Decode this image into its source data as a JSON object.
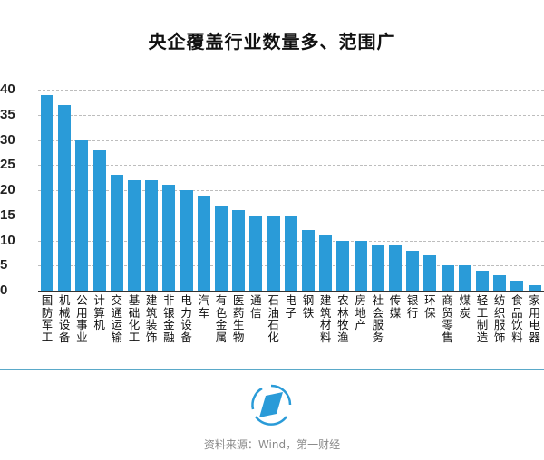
{
  "title": "央企覆盖行业数量多、范围广",
  "source": "资料来源：Wind，第一财经",
  "colors": {
    "bar": "#2a9bd8",
    "divider": "#5aa9c9",
    "logo": "#2a9bd8"
  },
  "logo_icon": "compass-diamond-icon",
  "chart_data": {
    "type": "bar",
    "title": "央企覆盖行业数量多、范围广",
    "xlabel": "",
    "ylabel": "",
    "ylim": [
      0,
      40
    ],
    "yticks": [
      0,
      5,
      10,
      15,
      20,
      25,
      30,
      35,
      40
    ],
    "grid": true,
    "legend": null,
    "categories": [
      "国防军工",
      "机械设备",
      "公用事业",
      "计算机",
      "交通运输",
      "基础化工",
      "建筑装饰",
      "非银金融",
      "电力设备",
      "汽车",
      "有色金属",
      "医药生物",
      "通信",
      "石油石化",
      "电子",
      "钢铁",
      "建筑材料",
      "农林牧渔",
      "房地产",
      "社会服务",
      "传媒",
      "银行",
      "环保",
      "商贸零售",
      "煤炭",
      "轻工制造",
      "纺织服饰",
      "食品饮料",
      "家用电器"
    ],
    "values": [
      39,
      37,
      30,
      28,
      23,
      22,
      22,
      21,
      20,
      19,
      17,
      16,
      15,
      15,
      15,
      12,
      11,
      10,
      10,
      9,
      9,
      8,
      7,
      5,
      5,
      4,
      3,
      2,
      1
    ]
  }
}
